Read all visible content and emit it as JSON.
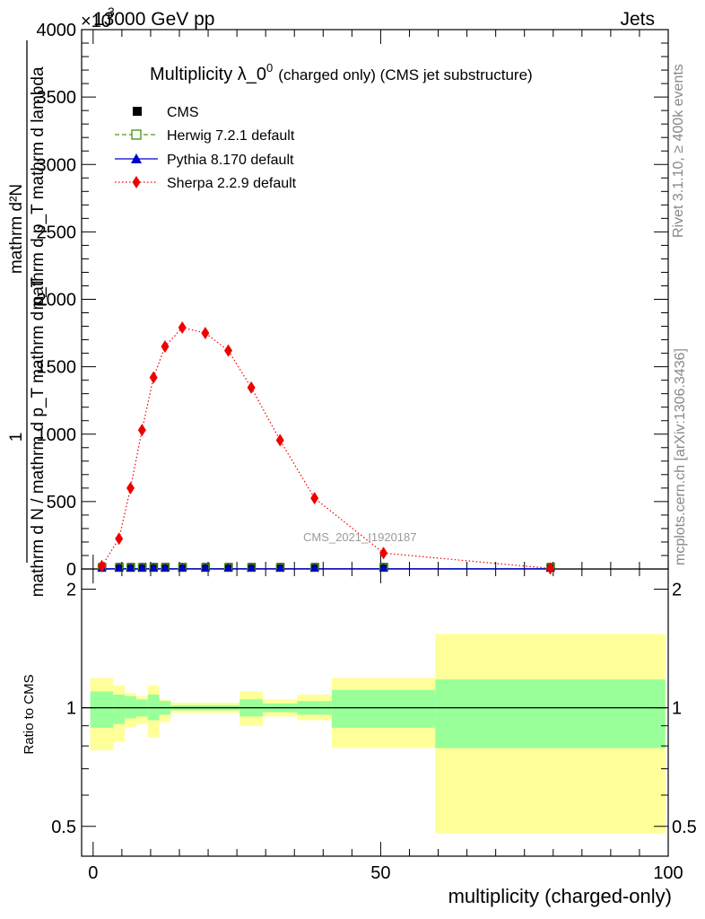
{
  "header": {
    "left": "13000 GeV pp",
    "right": "Jets",
    "exponent": "×10",
    "exponent_power": "3"
  },
  "side_labels": {
    "rivet": "Rivet 3.1.10, ≥ 400k events",
    "mcplots": "mcplots.cern.ch [arXiv:1306.3436]"
  },
  "watermark": "CMS_2021_I1920187",
  "chart_data": [
    {
      "type": "line",
      "panel": "main",
      "title": "Multiplicity λ_0",
      "title_superscript": "0",
      "title_suffix": "(charged only) (CMS jet substructure)",
      "ylabel_fraction_numerator": "1",
      "ylabel_fraction_denominator": "mathrm d N / mathrm d p_T mathrm d p_T",
      "ylabel_main_numerator": "mathrm d²N",
      "ylabel_main_denominator": "mathrm d p_T mathrm d lambda",
      "xlabel": "multiplicity (charged-only)",
      "xlim": [
        -2,
        100
      ],
      "ylim": [
        0,
        4000
      ],
      "y_ticks": [
        0,
        500,
        1000,
        1500,
        2000,
        2500,
        3000,
        3500,
        4000
      ],
      "y_tick_labels": [
        "0",
        "500",
        "1000",
        "1500",
        "2000",
        "2500",
        "3000",
        "3500",
        "4000"
      ],
      "legend_position": "top-left",
      "series": [
        {
          "name": "CMS",
          "style": "square-marker",
          "color": "#000000",
          "x": [
            1.5,
            4.5,
            6.5,
            8.5,
            10.5,
            12.5,
            15.5,
            19.5,
            23.5,
            27.5,
            32.5,
            38.5,
            50.5,
            79.5
          ],
          "values": [
            4,
            4,
            4,
            4,
            4,
            4,
            4,
            4,
            4,
            4,
            4,
            4,
            4,
            4
          ]
        },
        {
          "name": "Herwig 7.2.1 default",
          "style": "dashed-open-square",
          "color": "#4a9a1e",
          "x": [
            1.5,
            4.5,
            6.5,
            8.5,
            10.5,
            12.5,
            15.5,
            19.5,
            23.5,
            27.5,
            32.5,
            38.5,
            50.5,
            79.5
          ],
          "values": [
            2,
            2,
            2,
            2,
            2,
            2,
            2,
            2,
            2,
            2,
            2,
            2,
            2,
            2
          ]
        },
        {
          "name": "Pythia 8.170 default",
          "style": "solid-triangle",
          "color": "#0000cc",
          "x": [
            1.5,
            4.5,
            6.5,
            8.5,
            10.5,
            12.5,
            15.5,
            19.5,
            23.5,
            27.5,
            32.5,
            38.5,
            50.5,
            79.5
          ],
          "values": [
            2,
            2,
            2,
            2,
            2,
            2,
            2,
            2,
            2,
            2,
            2,
            2,
            2,
            2
          ]
        },
        {
          "name": "Sherpa 2.2.9 default",
          "style": "dotted-diamond",
          "color": "#ee0000",
          "x": [
            1.5,
            4.5,
            6.5,
            8.5,
            10.5,
            12.5,
            15.5,
            19.5,
            23.5,
            27.5,
            32.5,
            38.5,
            50.5,
            79.5
          ],
          "values": [
            22,
            225,
            600,
            1030,
            1420,
            1650,
            1790,
            1750,
            1620,
            1345,
            955,
            525,
            118,
            4
          ]
        }
      ]
    },
    {
      "type": "area",
      "panel": "ratio",
      "ylabel": "Ratio to CMS",
      "xlabel": "multiplicity (charged-only)",
      "xlim": [
        -2,
        100
      ],
      "ylim": [
        0.42,
        2.25
      ],
      "y_ticks": [
        0.5,
        1,
        2
      ],
      "y_tick_labels": [
        "0.5",
        "1",
        "2"
      ],
      "x_ticks": [
        0,
        50,
        100
      ],
      "x_tick_labels": [
        "0",
        "50",
        "100"
      ],
      "reference_line": 1,
      "bins": [
        {
          "x0": -0.5,
          "x1": 3.5,
          "in_lo": 0.89,
          "in_hi": 1.1,
          "out_lo": 0.78,
          "out_hi": 1.19
        },
        {
          "x0": 3.5,
          "x1": 5.5,
          "in_lo": 0.91,
          "in_hi": 1.08,
          "out_lo": 0.82,
          "out_hi": 1.14
        },
        {
          "x0": 5.5,
          "x1": 7.5,
          "in_lo": 0.94,
          "in_hi": 1.07,
          "out_lo": 0.89,
          "out_hi": 1.09
        },
        {
          "x0": 7.5,
          "x1": 9.5,
          "in_lo": 0.95,
          "in_hi": 1.05,
          "out_lo": 0.91,
          "out_hi": 1.07
        },
        {
          "x0": 9.5,
          "x1": 11.5,
          "in_lo": 0.93,
          "in_hi": 1.08,
          "out_lo": 0.84,
          "out_hi": 1.14
        },
        {
          "x0": 11.5,
          "x1": 13.5,
          "in_lo": 0.96,
          "in_hi": 1.04,
          "out_lo": 0.92,
          "out_hi": 1.05
        },
        {
          "x0": 13.5,
          "x1": 25.5,
          "in_lo": 0.985,
          "in_hi": 1.015,
          "out_lo": 0.97,
          "out_hi": 1.03
        },
        {
          "x0": 25.5,
          "x1": 29.5,
          "in_lo": 0.95,
          "in_hi": 1.05,
          "out_lo": 0.9,
          "out_hi": 1.1
        },
        {
          "x0": 29.5,
          "x1": 35.5,
          "in_lo": 0.975,
          "in_hi": 1.025,
          "out_lo": 0.95,
          "out_hi": 1.05
        },
        {
          "x0": 35.5,
          "x1": 41.5,
          "in_lo": 0.96,
          "in_hi": 1.04,
          "out_lo": 0.93,
          "out_hi": 1.08
        },
        {
          "x0": 41.5,
          "x1": 59.5,
          "in_lo": 0.89,
          "in_hi": 1.11,
          "out_lo": 0.79,
          "out_hi": 1.19
        },
        {
          "x0": 59.5,
          "x1": 99.5,
          "in_lo": 0.79,
          "in_hi": 1.18,
          "out_lo": 0.48,
          "out_hi": 1.54
        }
      ],
      "colors": {
        "inner": "#99ff99",
        "outer": "#ffff99"
      }
    }
  ]
}
